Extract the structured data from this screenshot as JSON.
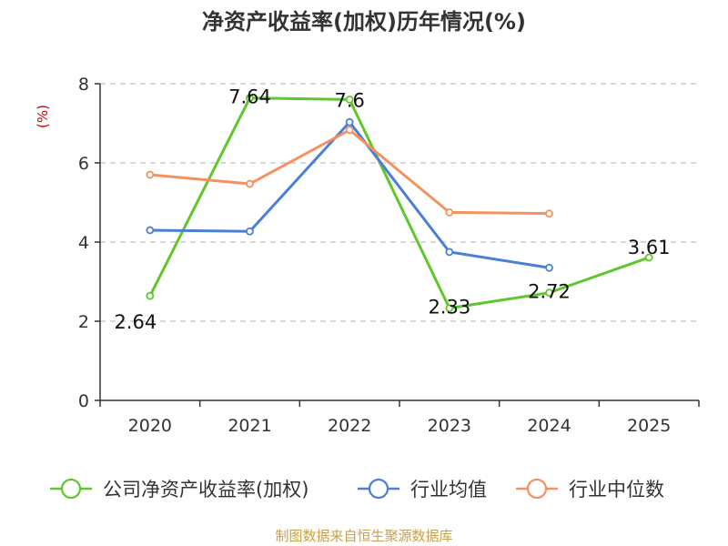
{
  "chart_data": {
    "type": "line",
    "title": "净资产收益率(加权)历年情况(%)",
    "ylabel": "(%)",
    "xlabel": "",
    "categories": [
      "2020",
      "2021",
      "2022",
      "2023",
      "2024",
      "2025"
    ],
    "ylim": [
      0,
      8
    ],
    "yticks": [
      "0",
      "2",
      "4",
      "6",
      "8"
    ],
    "grid": true,
    "legend_position": "bottom",
    "series": [
      {
        "name": "公司净资产收益率(加权)",
        "color": "#5ec72b",
        "values": [
          2.64,
          7.64,
          7.6,
          2.33,
          2.72,
          3.61
        ],
        "labels": [
          "2.64",
          "7.64",
          "7.6",
          "2.33",
          "2.72",
          "3.61"
        ]
      },
      {
        "name": "行业均值",
        "color": "#4a7fd6",
        "values": [
          4.3,
          4.27,
          7.03,
          3.75,
          3.35,
          null
        ]
      },
      {
        "name": "行业中位数",
        "color": "#f5915e",
        "values": [
          5.7,
          5.47,
          6.83,
          4.75,
          4.72,
          null
        ]
      }
    ],
    "source": "制图数据来自恒生聚源数据库"
  }
}
